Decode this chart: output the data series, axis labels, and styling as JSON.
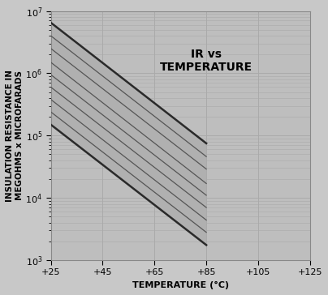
{
  "title": "IR vs\nTEMPERATURE",
  "xlabel": "TEMPERATURE (°C)",
  "ylabel": "INSULATION RESISTANCE IN\nMEGOHMS x MICROFARADS",
  "xlim": [
    25,
    125
  ],
  "ylim_log": [
    1000,
    10000000
  ],
  "background_color": "#c8c8c8",
  "plot_bg_color": "#bebebe",
  "grid_color": "#aaaaaa",
  "font_size_title": 10,
  "font_size_labels": 8,
  "font_size_ticks": 8,
  "all_x_ticks": [
    25,
    45,
    65,
    85,
    105,
    125
  ],
  "all_x_labels": [
    "+25",
    "+45",
    "+65",
    "+85",
    "+105",
    "+125"
  ],
  "band_lines": [
    {
      "x": [
        25,
        85
      ],
      "y": [
        6500000,
        75000
      ]
    },
    {
      "x": [
        25,
        85
      ],
      "y": [
        4000000,
        46000
      ]
    },
    {
      "x": [
        25,
        85
      ],
      "y": [
        2500000,
        29000
      ]
    },
    {
      "x": [
        25,
        85
      ],
      "y": [
        1500000,
        17000
      ]
    },
    {
      "x": [
        25,
        85
      ],
      "y": [
        950000,
        11000
      ]
    },
    {
      "x": [
        25,
        85
      ],
      "y": [
        600000,
        7000
      ]
    },
    {
      "x": [
        25,
        85
      ],
      "y": [
        380000,
        4400
      ]
    },
    {
      "x": [
        25,
        85
      ],
      "y": [
        240000,
        2800
      ]
    },
    {
      "x": [
        25,
        85
      ],
      "y": [
        150000,
        1750
      ]
    }
  ],
  "outer_top_line": {
    "x": [
      25,
      85
    ],
    "y": [
      6500000,
      75000
    ]
  },
  "outer_bot_line": {
    "x": [
      25,
      85
    ],
    "y": [
      150000,
      1750
    ]
  },
  "dark_color": "#2a2a2a",
  "line_color": "#555555",
  "fill_color": "#b0b0b0"
}
